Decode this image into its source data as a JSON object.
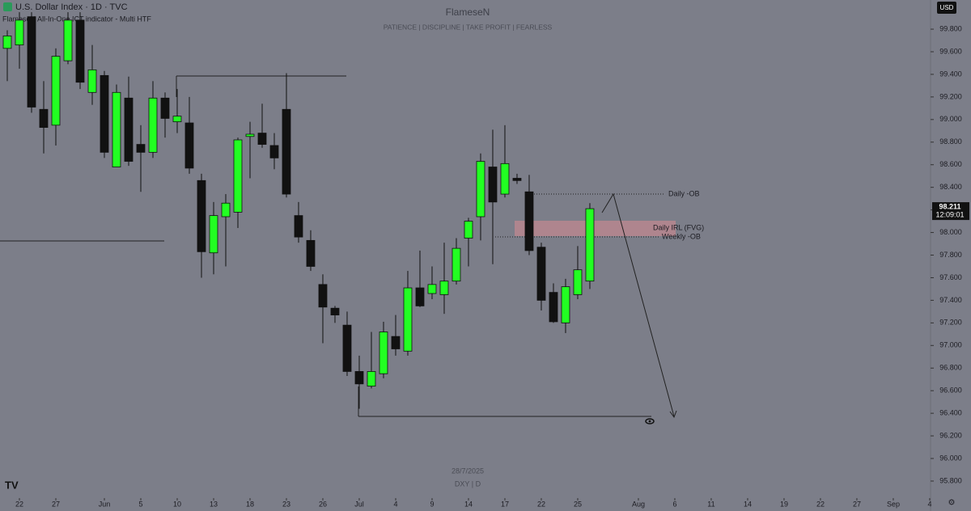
{
  "chart_data": {
    "type": "candlestick",
    "title": "U.S. Dollar Index · 1D · TVC",
    "indicator": "FlameseN All-In-One ICT indicator - Multi HTF",
    "watermark": "FlameseN",
    "subtitle": "PATIENCE | DISCIPLINE | TAKE PROFIT | FEARLESS",
    "date_stamp": "28/7/2025",
    "symbol_stamp": "DXY | D",
    "currency": "USD",
    "countdown": "12:09:01",
    "annotations": [
      "Daily -OB",
      "Daily IRL (FVG)",
      "Weekly -OB"
    ],
    "up_color": "#22ff22",
    "down_color": "#111111",
    "open": [
      99.63,
      99.66,
      99.91,
      99.09,
      98.95,
      99.52,
      99.88,
      99.24,
      99.39,
      98.58,
      99.19,
      98.78,
      98.71,
      99.19,
      98.98,
      98.97,
      98.46,
      97.82,
      98.14,
      98.18,
      98.85,
      98.88,
      98.77,
      99.09,
      98.15,
      97.93,
      97.54,
      97.33,
      97.18,
      96.77,
      96.64,
      96.75,
      97.08,
      96.95,
      97.51,
      97.46,
      97.45,
      97.57,
      97.95,
      98.14,
      98.58,
      98.34,
      98.48,
      98.36,
      97.87,
      97.47,
      97.2,
      97.45,
      97.57
    ],
    "high": [
      99.79,
      99.95,
      99.95,
      99.34,
      99.63,
      99.95,
      99.95,
      99.66,
      99.43,
      99.31,
      99.38,
      98.95,
      99.34,
      99.24,
      99.27,
      99.2,
      98.52,
      98.27,
      98.34,
      98.84,
      98.98,
      99.14,
      98.88,
      99.41,
      98.27,
      98.02,
      97.63,
      97.35,
      97.3,
      96.91,
      97.12,
      97.21,
      97.27,
      97.66,
      97.84,
      97.7,
      97.91,
      97.95,
      98.13,
      98.7,
      98.91,
      98.95,
      98.52,
      98.51,
      97.91,
      97.55,
      97.59,
      97.88,
      98.26
    ],
    "low": [
      99.34,
      99.45,
      99.06,
      98.7,
      98.77,
      99.49,
      99.27,
      99.13,
      98.66,
      98.58,
      98.59,
      98.36,
      98.66,
      98.84,
      98.88,
      98.52,
      97.6,
      97.63,
      97.7,
      98.04,
      98.48,
      98.75,
      98.56,
      98.31,
      97.91,
      97.66,
      97.02,
      97.2,
      96.73,
      96.44,
      96.62,
      96.71,
      96.91,
      96.91,
      97.34,
      97.41,
      97.28,
      97.54,
      97.7,
      97.93,
      97.72,
      98.31,
      98.43,
      97.8,
      97.31,
      97.2,
      97.11,
      97.41,
      97.5
    ],
    "close": [
      99.74,
      99.88,
      99.11,
      98.93,
      99.56,
      99.88,
      99.33,
      99.44,
      98.71,
      99.24,
      98.63,
      98.71,
      99.19,
      99.01,
      99.03,
      98.57,
      97.83,
      98.15,
      98.26,
      98.82,
      98.87,
      98.78,
      98.66,
      98.34,
      97.96,
      97.7,
      97.34,
      97.27,
      96.77,
      96.66,
      96.77,
      97.12,
      96.97,
      97.51,
      97.35,
      97.54,
      97.57,
      97.86,
      98.1,
      98.63,
      98.27,
      98.61,
      98.46,
      97.84,
      97.4,
      97.21,
      97.52,
      97.67,
      98.211
    ],
    "xlim": [
      -0.6,
      76.07
    ],
    "xticks": [
      {
        "value": 1,
        "label": "22"
      },
      {
        "value": 4,
        "label": "27"
      },
      {
        "value": 8,
        "label": "Jun"
      },
      {
        "value": 11,
        "label": "5"
      },
      {
        "value": 14,
        "label": "10"
      },
      {
        "value": 17,
        "label": "13"
      },
      {
        "value": 20,
        "label": "18"
      },
      {
        "value": 23,
        "label": "23"
      },
      {
        "value": 26,
        "label": "26"
      },
      {
        "value": 29,
        "label": "Jul"
      },
      {
        "value": 32,
        "label": "4"
      },
      {
        "value": 35,
        "label": "9"
      },
      {
        "value": 38,
        "label": "14"
      },
      {
        "value": 41,
        "label": "17"
      },
      {
        "value": 44,
        "label": "22"
      },
      {
        "value": 47,
        "label": "25"
      },
      {
        "value": 52,
        "label": "Aug"
      },
      {
        "value": 55,
        "label": "6"
      },
      {
        "value": 58,
        "label": "11"
      },
      {
        "value": 61,
        "label": "14"
      },
      {
        "value": 64,
        "label": "19"
      },
      {
        "value": 67,
        "label": "22"
      },
      {
        "value": 70,
        "label": "27"
      },
      {
        "value": 73,
        "label": "Sep"
      },
      {
        "value": 76,
        "label": "4"
      }
    ],
    "ylim": [
      95.535,
      100.058
    ],
    "yticks": [
      {
        "value": 95.8,
        "label": "95.800"
      },
      {
        "value": 96.0,
        "label": "96.000"
      },
      {
        "value": 96.2,
        "label": "96.200"
      },
      {
        "value": 96.4,
        "label": "96.400"
      },
      {
        "value": 96.6,
        "label": "96.600"
      },
      {
        "value": 96.8,
        "label": "96.800"
      },
      {
        "value": 97.0,
        "label": "97.000"
      },
      {
        "value": 97.2,
        "label": "97.200"
      },
      {
        "value": 97.4,
        "label": "97.400"
      },
      {
        "value": 97.6,
        "label": "97.600"
      },
      {
        "value": 97.8,
        "label": "97.800"
      },
      {
        "value": 98.0,
        "label": "98.000"
      },
      {
        "value": 98.2,
        "label": "98.200"
      },
      {
        "value": 98.4,
        "label": "98.400"
      },
      {
        "value": 98.6,
        "label": "98.600"
      },
      {
        "value": 98.8,
        "label": "98.800"
      },
      {
        "value": 99.0,
        "label": "99.000"
      },
      {
        "value": 99.2,
        "label": "99.200"
      },
      {
        "value": 99.4,
        "label": "99.400"
      },
      {
        "value": 99.6,
        "label": "99.600"
      },
      {
        "value": 99.8,
        "label": "99.800"
      }
    ]
  }
}
